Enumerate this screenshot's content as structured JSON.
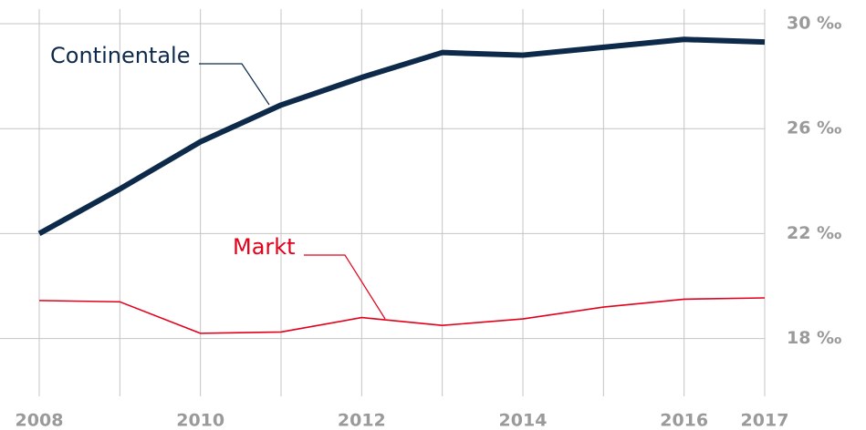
{
  "chart_data": {
    "type": "line",
    "categories": [
      "2008",
      null,
      "2010",
      null,
      "2012",
      null,
      "2014",
      null,
      "2016",
      "2017"
    ],
    "series": [
      {
        "name": "Continentale",
        "color": "#0d2a4a",
        "values": [
          22.0,
          23.7,
          25.5,
          26.9,
          27.95,
          28.9,
          28.8,
          29.1,
          29.4,
          29.3
        ]
      },
      {
        "name": "Markt",
        "color": "#e2001a",
        "values": [
          19.45,
          19.4,
          18.2,
          18.25,
          18.8,
          18.5,
          18.75,
          19.2,
          19.5,
          19.55
        ]
      }
    ],
    "ylim": [
      15.8,
      30
    ],
    "yticks": [
      {
        "value": 18,
        "label": "18 ‰"
      },
      {
        "value": 22,
        "label": "22 ‰"
      },
      {
        "value": 26,
        "label": "26 ‰"
      },
      {
        "value": 30,
        "label": "30 ‰"
      }
    ],
    "grid": true
  }
}
